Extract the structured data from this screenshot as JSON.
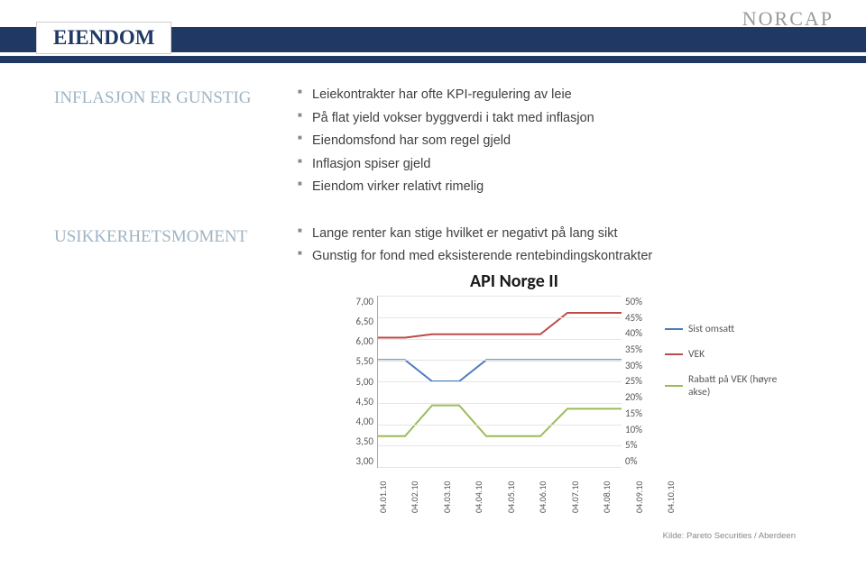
{
  "logo": "NORCAP",
  "title": "EIENDOM",
  "sections": [
    {
      "label": "INFLASJON ER GUNSTIG",
      "bullets": [
        "Leiekontrakter har ofte KPI-regulering av leie",
        "På flat yield vokser byggverdi i takt med inflasjon",
        "Eiendomsfond har som regel gjeld",
        "Inflasjon spiser gjeld",
        "Eiendom virker relativt rimelig"
      ]
    },
    {
      "label": "USIKKERHETSMOMENT",
      "bullets": [
        "Lange renter kan stige hvilket er negativt på lang sikt",
        "Gunstig for fond med eksisterende rentebindingskontrakter"
      ]
    }
  ],
  "chart": {
    "title": "API Norge II",
    "type": "line-dual-axis",
    "y_left": {
      "min": 3.0,
      "max": 7.0,
      "step": 0.5,
      "labels": [
        "7,00",
        "6,50",
        "6,00",
        "5,50",
        "5,00",
        "4,50",
        "4,00",
        "3,50",
        "3,00"
      ]
    },
    "y_right": {
      "min": 0,
      "max": 50,
      "step": 5,
      "labels": [
        "50%",
        "45%",
        "40%",
        "35%",
        "30%",
        "25%",
        "20%",
        "15%",
        "10%",
        "5%",
        "0%"
      ]
    },
    "x_labels": [
      "04.01.10",
      "04.02.10",
      "04.03.10",
      "04.04.10",
      "04.05.10",
      "04.06.10",
      "04.07.10",
      "04.08.10",
      "04.09.10",
      "04.10.10"
    ],
    "series": [
      {
        "name": "Sist omsatt",
        "color": "#4a7ebb",
        "axis": "left",
        "points": [
          [
            0,
            5.5
          ],
          [
            1,
            5.5
          ],
          [
            2,
            5.0
          ],
          [
            3,
            5.0
          ],
          [
            4,
            5.5
          ],
          [
            5,
            5.5
          ],
          [
            6,
            5.5
          ],
          [
            7,
            5.5
          ],
          [
            8,
            5.5
          ],
          [
            9,
            5.5
          ]
        ]
      },
      {
        "name": "VEK",
        "color": "#be4b48",
        "axis": "left",
        "points": [
          [
            0,
            6.02
          ],
          [
            1,
            6.02
          ],
          [
            2,
            6.1
          ],
          [
            3,
            6.1
          ],
          [
            4,
            6.1
          ],
          [
            5,
            6.1
          ],
          [
            6,
            6.1
          ],
          [
            7,
            6.6
          ],
          [
            8,
            6.6
          ],
          [
            9,
            6.6
          ]
        ]
      },
      {
        "name": "Rabatt på VEK (høyre akse)",
        "color": "#9abb59",
        "axis": "right",
        "points": [
          [
            0,
            9
          ],
          [
            1,
            9
          ],
          [
            2,
            18
          ],
          [
            3,
            18
          ],
          [
            4,
            9
          ],
          [
            5,
            9
          ],
          [
            6,
            9
          ],
          [
            7,
            17
          ],
          [
            8,
            17
          ],
          [
            9,
            17
          ]
        ]
      }
    ],
    "legend_labels": [
      "Sist omsatt",
      "VEK",
      "Rabatt på VEK (høyre akse)"
    ],
    "background_color": "#ffffff",
    "grid_color": "#e5e5e5",
    "line_width": 2,
    "font_size": 11,
    "source": "Kilde: Pareto Securities / Aberdeen"
  }
}
